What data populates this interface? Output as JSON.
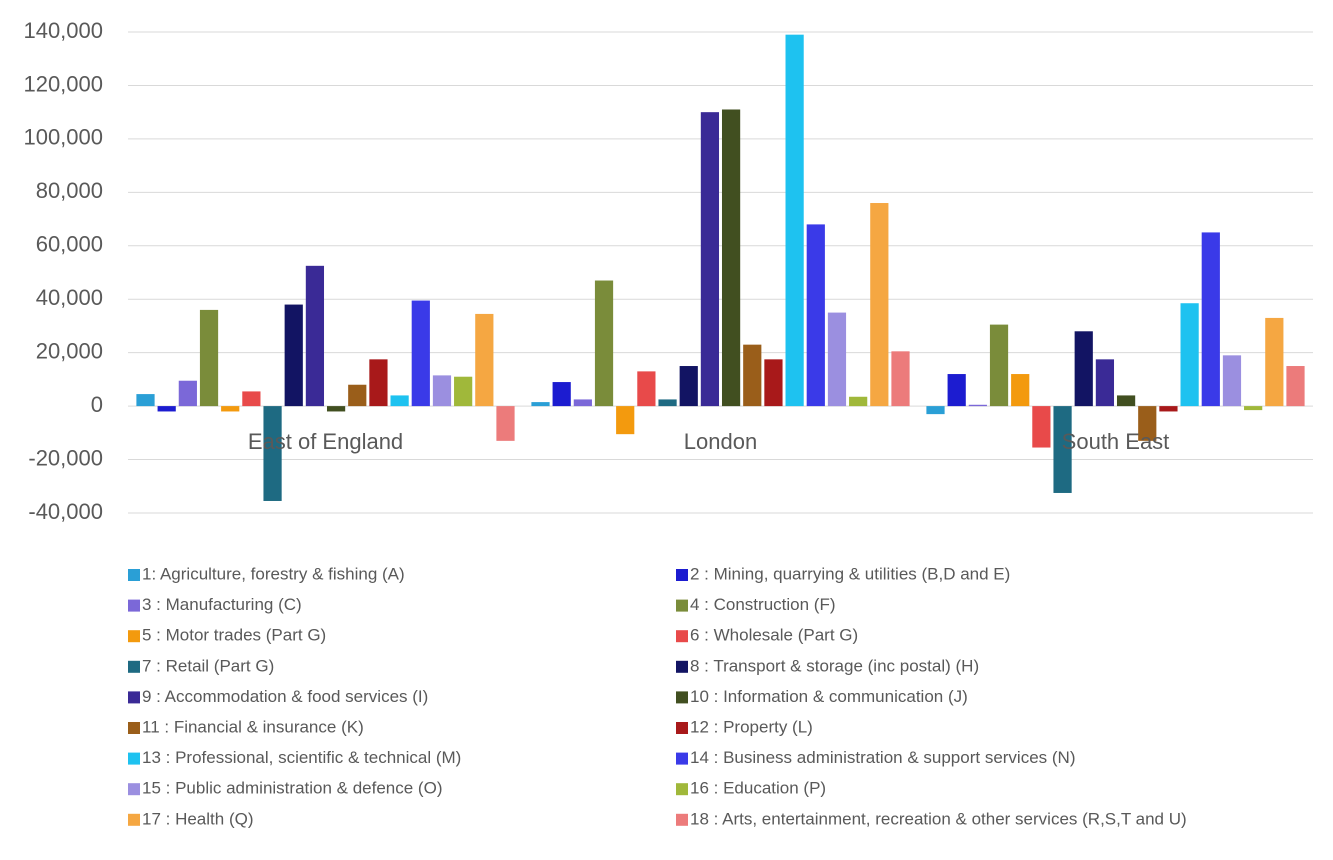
{
  "chart_data": {
    "type": "bar",
    "categories": [
      "East of England",
      "London",
      "South East"
    ],
    "ylim": [
      -40000,
      140000
    ],
    "yticks": [
      {
        "value": -40000,
        "label": "-40,000"
      },
      {
        "value": -20000,
        "label": "-20,000"
      },
      0,
      {
        "value": 20000,
        "label": "20,000"
      },
      {
        "value": 40000,
        "label": "40,000"
      },
      {
        "value": 60000,
        "label": "60,000"
      },
      {
        "value": 80000,
        "label": "80,000"
      },
      {
        "value": 100000,
        "label": "100,000"
      },
      {
        "value": 120000,
        "label": "120,000"
      },
      {
        "value": 140000,
        "label": "140,000"
      }
    ],
    "grid": true,
    "series": [
      {
        "name": "1: Agriculture, forestry & fishing (A)",
        "color": "#2a9fd6",
        "values": [
          4500,
          1500,
          -3000
        ]
      },
      {
        "name": "2 : Mining, quarrying & utilities (B,D and E)",
        "color": "#1c1cd0",
        "values": [
          -2000,
          9000,
          12000
        ]
      },
      {
        "name": "3 : Manufacturing (C)",
        "color": "#7b68d8",
        "values": [
          9500,
          2500,
          500
        ]
      },
      {
        "name": "4 : Construction (F)",
        "color": "#7a8c3a",
        "values": [
          36000,
          47000,
          30500
        ]
      },
      {
        "name": "5 : Motor trades (Part G)",
        "color": "#f39a0e",
        "values": [
          -2000,
          -10500,
          12000
        ]
      },
      {
        "name": "6 : Wholesale (Part G)",
        "color": "#e84a4a",
        "values": [
          5500,
          13000,
          -15500
        ]
      },
      {
        "name": "7 : Retail (Part G)",
        "color": "#1e6a82",
        "values": [
          -35500,
          2500,
          -32500
        ]
      },
      {
        "name": "8 : Transport & storage (inc postal) (H)",
        "color": "#121463",
        "values": [
          38000,
          15000,
          28000
        ]
      },
      {
        "name": "9 : Accommodation & food services (I)",
        "color": "#3a2a96",
        "values": [
          52500,
          110000,
          17500
        ]
      },
      {
        "name": "10 : Information & communication (J)",
        "color": "#414f20",
        "values": [
          -2000,
          111000,
          4000
        ]
      },
      {
        "name": "11 : Financial & insurance (K)",
        "color": "#9a5e1a",
        "values": [
          8000,
          23000,
          -13000
        ]
      },
      {
        "name": "12 : Property (L)",
        "color": "#a8191a",
        "values": [
          17500,
          17500,
          -2000
        ]
      },
      {
        "name": "13 : Professional, scientific & technical (M)",
        "color": "#1ec2f0",
        "values": [
          4000,
          139000,
          38500
        ]
      },
      {
        "name": "14 : Business administration & support services (N)",
        "color": "#3a3ae8",
        "values": [
          39500,
          68000,
          65000
        ]
      },
      {
        "name": "15 : Public administration & defence (O)",
        "color": "#9b8fe0",
        "values": [
          11500,
          35000,
          19000
        ]
      },
      {
        "name": "16 : Education (P)",
        "color": "#a0b83a",
        "values": [
          11000,
          3500,
          -1500
        ]
      },
      {
        "name": "17 : Health (Q)",
        "color": "#f5a742",
        "values": [
          34500,
          76000,
          33000
        ]
      },
      {
        "name": "18 : Arts, entertainment, recreation & other services (R,S,T and U)",
        "color": "#ec7b7b",
        "values": [
          -13000,
          20500,
          15000
        ]
      }
    ]
  }
}
